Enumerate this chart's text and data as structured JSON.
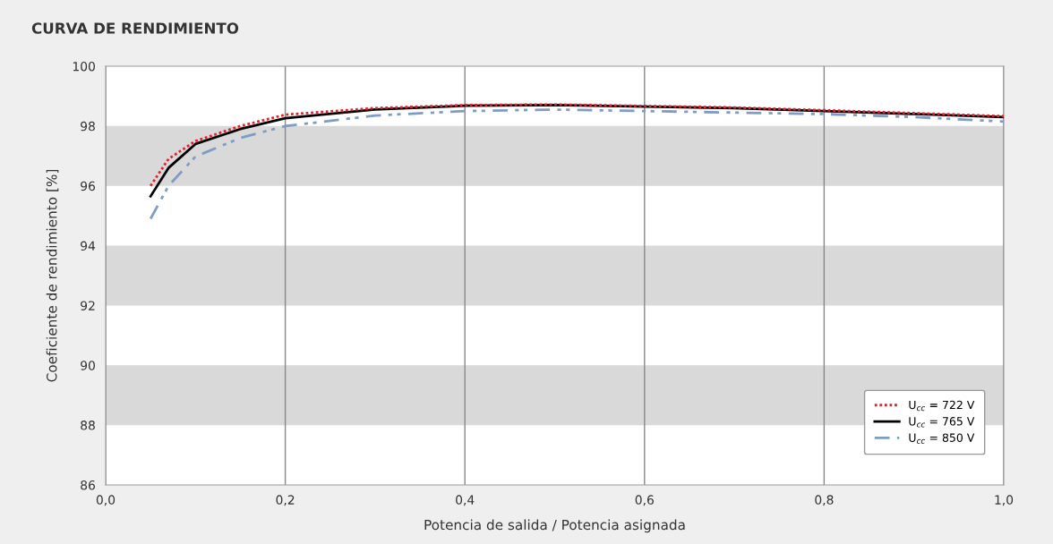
{
  "chart_data": {
    "type": "line",
    "title": "CURVA DE RENDIMIENTO",
    "xlabel": "Potencia de salida / Potencia asignada",
    "ylabel": "Coeficiente de rendimiento [%]",
    "x": [
      0.05,
      0.07,
      0.1,
      0.15,
      0.2,
      0.3,
      0.4,
      0.5,
      0.6,
      0.7,
      0.8,
      0.9,
      1.0
    ],
    "series": [
      {
        "name": "U$_{cc}$ = 722 V",
        "color": "#e8202a",
        "line_style": "dotted",
        "values": [
          96.0,
          96.9,
          97.5,
          98.0,
          98.38,
          98.6,
          98.7,
          98.72,
          98.67,
          98.62,
          98.53,
          98.43,
          98.33
        ]
      },
      {
        "name": "U$_{cc}$ = 765 V",
        "color": "#000000",
        "line_style": "solid",
        "values": [
          95.65,
          96.6,
          97.4,
          97.9,
          98.26,
          98.55,
          98.68,
          98.7,
          98.65,
          98.6,
          98.5,
          98.4,
          98.3
        ]
      },
      {
        "name": "U$_{cc}$ = 850 V",
        "color": "#7f9cc6",
        "line_style": "dashed",
        "values": [
          94.9,
          96.0,
          96.98,
          97.6,
          98.0,
          98.35,
          98.5,
          98.55,
          98.5,
          98.45,
          98.4,
          98.3,
          98.15
        ]
      }
    ],
    "xlim": [
      0.0,
      1.0
    ],
    "ylim": [
      86,
      100
    ],
    "xticks": [
      {
        "value": 0.0,
        "label": "0,0"
      },
      {
        "value": 0.2,
        "label": "0,2"
      },
      {
        "value": 0.4,
        "label": "0,4"
      },
      {
        "value": 0.6,
        "label": "0,6"
      },
      {
        "value": 0.8,
        "label": "0,8"
      },
      {
        "value": 1.0,
        "label": "1,0"
      }
    ],
    "yticks": [
      86,
      88,
      90,
      92,
      94,
      96,
      98,
      100
    ],
    "bands": [
      {
        "axis": "y",
        "from": 96,
        "to": 98,
        "color": "#d9d9d9"
      },
      {
        "axis": "y",
        "from": 92,
        "to": 94,
        "color": "#d9d9d9"
      },
      {
        "axis": "y",
        "from": 88,
        "to": 90,
        "color": "#d9d9d9"
      }
    ],
    "grid": "x",
    "legend": "lower right"
  }
}
